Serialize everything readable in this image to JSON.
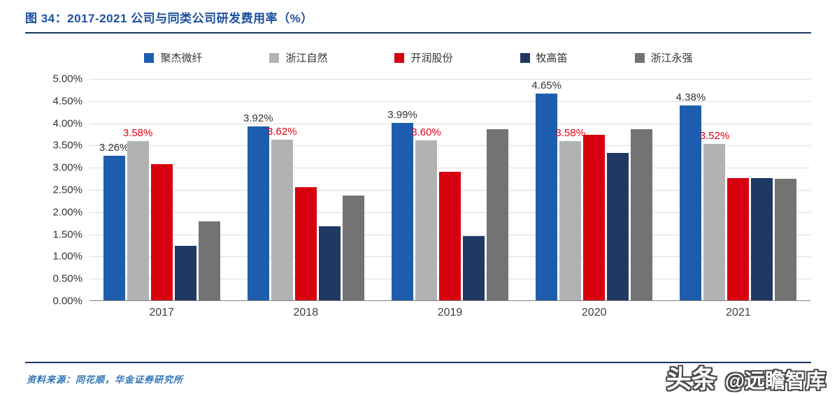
{
  "page": {
    "title_prefix": "图 34：",
    "title": "2017-2021 公司与同类公司研发费用率（%）",
    "source": "资料来源：同花顺，华金证券研究所",
    "watermark_part1": "头条",
    "watermark_part2": "@远瞻智库"
  },
  "colors": {
    "title": "#1B4F9E",
    "rule": "#16365C",
    "source_text": "#2E74B5",
    "grid": "#DCDCDC",
    "axis_text": "#333333"
  },
  "chart_data": {
    "type": "bar",
    "title": "2017-2021 公司与同类公司研发费用率（%）",
    "categories": [
      "2017",
      "2018",
      "2019",
      "2020",
      "2021"
    ],
    "series": [
      {
        "name": "聚杰微纤",
        "color": "#1D5DAF",
        "values": [
          3.26,
          3.92,
          3.99,
          4.65,
          4.38
        ],
        "labels": [
          "3.26%",
          "3.92%",
          "3.99%",
          "4.65%",
          "4.38%"
        ],
        "label_color": "#333333"
      },
      {
        "name": "浙江自然",
        "color": "#B2B2B2",
        "values": [
          3.58,
          3.62,
          3.6,
          3.58,
          3.52
        ],
        "labels": [
          "3.58%",
          "3.62%",
          "3.60%",
          "3.58%",
          "3.52%"
        ],
        "label_color": "#E60012"
      },
      {
        "name": "开润股份",
        "color": "#D7000F",
        "values": [
          3.07,
          2.54,
          2.9,
          3.72,
          2.75
        ]
      },
      {
        "name": "牧高笛",
        "color": "#1F3864",
        "values": [
          1.22,
          1.67,
          1.45,
          3.32,
          2.75
        ]
      },
      {
        "name": "浙江永强",
        "color": "#737373",
        "values": [
          1.78,
          2.36,
          3.85,
          3.86,
          2.73
        ]
      }
    ],
    "ylim": [
      0,
      5
    ],
    "ytick_step": 0.5,
    "yticks": [
      "5.00%",
      "4.50%",
      "4.00%",
      "3.50%",
      "3.00%",
      "2.50%",
      "2.00%",
      "1.50%",
      "1.00%",
      "0.50%",
      "0.00%"
    ],
    "grid": true,
    "legend_position": "top"
  }
}
